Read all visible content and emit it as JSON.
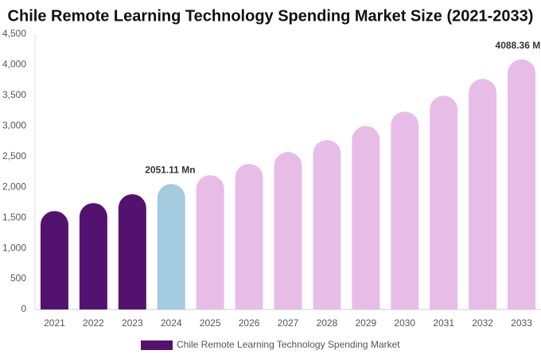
{
  "chart_data": {
    "type": "bar",
    "title": "Chile Remote Learning Technology Spending Market Size (2021-2033)",
    "categories": [
      "2021",
      "2022",
      "2023",
      "2024",
      "2025",
      "2026",
      "2027",
      "2028",
      "2029",
      "2030",
      "2031",
      "2032",
      "2033"
    ],
    "series": [
      {
        "name": "Chile Remote Learning Technology Spending Market",
        "color": "#541270",
        "values": [
          1610,
          1740,
          1885,
          2051.11,
          2195,
          2380,
          2575,
          2770,
          3000,
          3235,
          3495,
          3770,
          4088.36
        ],
        "value_labels": [
          null,
          null,
          null,
          "2051.11 Mn",
          null,
          null,
          null,
          null,
          null,
          null,
          null,
          null,
          "4088.36 Mn"
        ],
        "colors": [
          "#541270",
          "#541270",
          "#541270",
          "#a4cbdf",
          "#e7bde8",
          "#e7bde8",
          "#e7bde8",
          "#e7bde8",
          "#e7bde8",
          "#e7bde8",
          "#e7bde8",
          "#e7bde8",
          "#e7bde8"
        ]
      }
    ],
    "ylim": [
      0,
      4500
    ],
    "yticks": [
      0,
      500,
      {
        "value": 1000,
        "label": "1,000"
      },
      {
        "value": 1500,
        "label": "1,500"
      },
      {
        "value": 2000,
        "label": "2,000"
      },
      {
        "value": 2500,
        "label": "2,500"
      },
      {
        "value": 3000,
        "label": "3,000"
      },
      {
        "value": 3500,
        "label": "3,500"
      },
      {
        "value": 4000,
        "label": "4,000"
      },
      {
        "value": 4500,
        "label": "4,500"
      }
    ],
    "grid": false
  }
}
